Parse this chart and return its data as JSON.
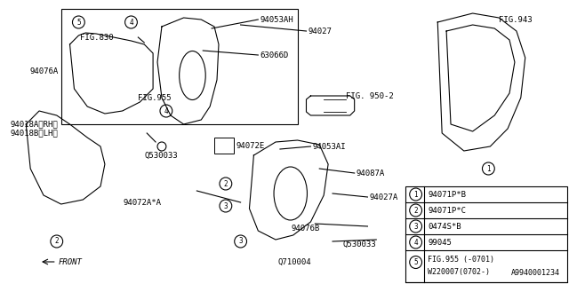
{
  "title": "",
  "background_color": "#ffffff",
  "border_color": "#000000",
  "diagram_id": "A9940001234",
  "legend_items": [
    {
      "num": "1",
      "text": "94071P*B"
    },
    {
      "num": "2",
      "text": "94071P*C"
    },
    {
      "num": "3",
      "text": "0474S*B"
    },
    {
      "num": "4",
      "text": "99045"
    },
    {
      "num": "5",
      "text": "FIG.955 (-0701)\nW220007(0702-)"
    }
  ],
  "part_labels": [
    "94053AH",
    "94027",
    "63066D",
    "FIG.830",
    "94076A",
    "94018A(RH)",
    "94018B(LH)",
    "FIG.955",
    "Q530033",
    "94072E",
    "94072A*A",
    "94053AI",
    "94087A",
    "94027A",
    "94076B",
    "Q530033",
    "Q710004",
    "FIG.943",
    "FIG. 950-2"
  ],
  "line_color": "#000000",
  "text_color": "#000000",
  "font_size": 6.5
}
